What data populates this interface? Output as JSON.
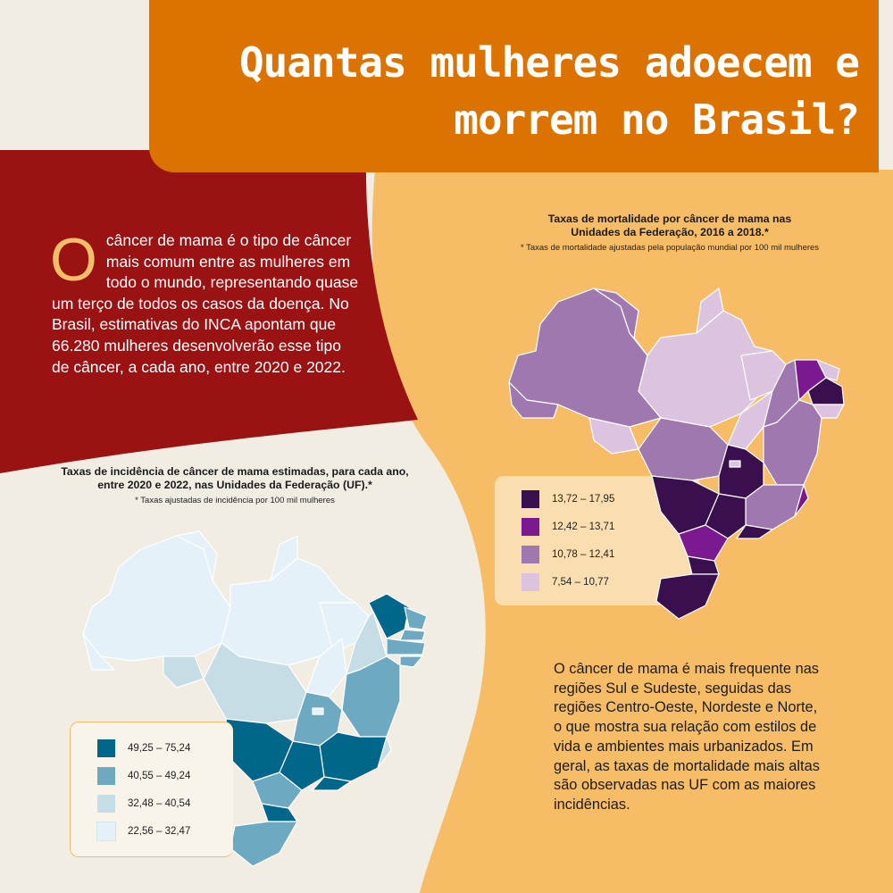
{
  "title": "Quantas mulheres adoecem e morrem no Brasil?",
  "intro": {
    "dropcap": "O",
    "text": "câncer de mama é o tipo de câncer mais comum entre as mulheres em todo o mundo, representando quase um terço de todos os casos da doença. No Brasil, estimativas do INCA apontam que 66.280 mulheres desenvolverão esse tipo de câncer, a cada ano, entre 2020 e 2022."
  },
  "mortality": {
    "title": "Taxas de mortalidade por câncer de mama nas Unidades da Federação, 2016 a 2018.*",
    "note": "* Taxas de mortalidade ajustadas pela população mundial por 100 mil mulheres",
    "legend": [
      {
        "label": "13,72 – 17,95",
        "color": "#3a0f4e"
      },
      {
        "label": "12,42 – 13,71",
        "color": "#7b1a90"
      },
      {
        "label": "10,78 – 12,41",
        "color": "#a078b0"
      },
      {
        "label": "7,54 – 10,77",
        "color": "#dcc4e0"
      }
    ]
  },
  "incidence": {
    "title": "Taxas de incidência de câncer de mama estimadas, para cada ano, entre 2020 e 2022, nas Unidades da Federação (UF).*",
    "note": "* Taxas ajustadas de incidência por 100 mil mulheres",
    "legend": [
      {
        "label": "49,25 – 75,24",
        "color": "#00678a"
      },
      {
        "label": "40,55 – 49,24",
        "color": "#6ea9c2"
      },
      {
        "label": "32,48 – 40,54",
        "color": "#c6dde6"
      },
      {
        "label": "22,56 – 32,47",
        "color": "#e4f1f8"
      }
    ]
  },
  "closing": "O câncer de mama é mais frequente nas regiões Sul e Sudeste, seguidas das regiões Centro-Oeste, Nordeste e Norte, o que mostra sua relação com estilos de vida e ambientes mais urbanizados. Em geral, as taxas de mortalidade mais altas são observadas nas UF com as maiores incidências."
}
